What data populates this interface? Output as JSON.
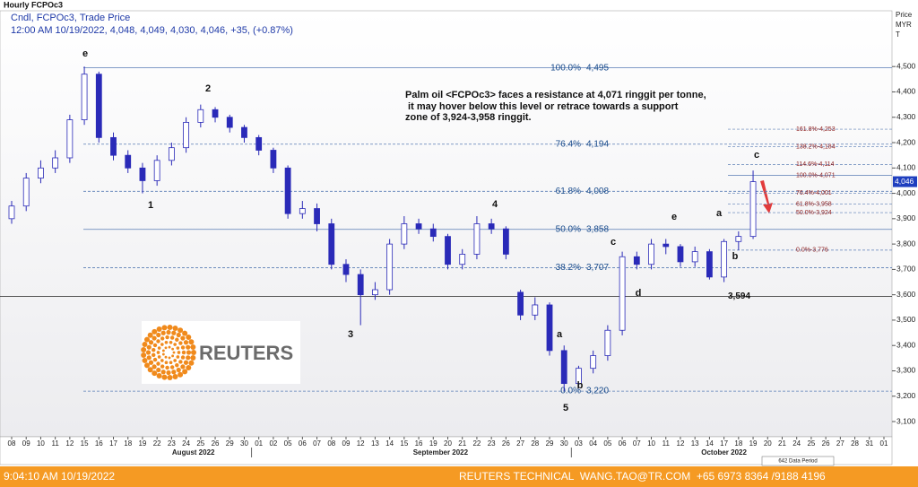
{
  "chart_data": {
    "type": "candlestick",
    "title": "Hourly FCPOc3",
    "subtitle": "Cndl, FCPOc3, Trade Price",
    "quote_line": "12:00 AM 10/19/2022, 4,048, 4,049, 4,030, 4,046, +35, (+0.87%)",
    "y_axis_label": [
      "Price",
      "MYR",
      "T"
    ],
    "categories": [
      "08",
      "09",
      "10",
      "11",
      "12",
      "15",
      "16",
      "17",
      "18",
      "19",
      "22",
      "23",
      "24",
      "25",
      "26",
      "29",
      "30",
      "01",
      "02",
      "05",
      "06",
      "07",
      "08",
      "09",
      "12",
      "13",
      "14",
      "15",
      "16",
      "19",
      "20",
      "21",
      "22",
      "23",
      "26",
      "27",
      "28",
      "29",
      "30",
      "03",
      "04",
      "05",
      "06",
      "07",
      "10",
      "11",
      "12",
      "13",
      "14",
      "17",
      "18",
      "19",
      "20",
      "21",
      "24",
      "25",
      "26",
      "27",
      "28",
      "31",
      "01"
    ],
    "months": [
      "August 2022",
      "September 2022",
      "October 2022"
    ],
    "series": [
      {
        "name": "FCPOc3",
        "color": "#2a2ab8",
        "open": [
          3900,
          3950,
          4060,
          4100,
          4140,
          4290,
          4470,
          4220,
          4150,
          4100,
          4050,
          4130,
          4180,
          4280,
          4330,
          4300,
          4260,
          4220,
          4170,
          4100,
          3920,
          3940,
          3880,
          3720,
          3680,
          3600,
          3620,
          3800,
          3880,
          3860,
          3830,
          3720,
          3760,
          3880,
          3860,
          3610,
          3520,
          3560,
          3380,
          3250,
          3310,
          3360,
          3460,
          3750,
          3720,
          3800,
          3790,
          3730,
          3770,
          3670,
          3810,
          3830,
          null,
          null,
          null,
          null,
          null,
          null,
          null,
          null,
          null
        ],
        "high": [
          3970,
          4080,
          4130,
          4170,
          4310,
          4500,
          4480,
          4240,
          4170,
          4120,
          4150,
          4200,
          4300,
          4350,
          4340,
          4310,
          4270,
          4230,
          4180,
          4110,
          3970,
          3960,
          3900,
          3740,
          3700,
          3650,
          3820,
          3910,
          3900,
          3880,
          3840,
          3780,
          3910,
          3900,
          3870,
          3620,
          3590,
          3570,
          3400,
          3320,
          3380,
          3480,
          3770,
          3770,
          3820,
          3820,
          3800,
          3790,
          3780,
          3820,
          3850,
          4090,
          null,
          null,
          null,
          null,
          null,
          null,
          null,
          null,
          null
        ],
        "low": [
          3880,
          3930,
          4040,
          4080,
          4120,
          4270,
          4200,
          4130,
          4080,
          4000,
          4030,
          4110,
          4160,
          4260,
          4280,
          4240,
          4200,
          4150,
          4080,
          3900,
          3900,
          3850,
          3700,
          3650,
          3480,
          3580,
          3600,
          3780,
          3840,
          3810,
          3700,
          3700,
          3740,
          3840,
          3740,
          3500,
          3500,
          3360,
          3220,
          3230,
          3290,
          3340,
          3440,
          3700,
          3700,
          3760,
          3710,
          3710,
          3660,
          3650,
          3776,
          3820,
          null,
          null,
          null,
          null,
          null,
          null,
          null,
          null,
          null
        ],
        "close": [
          3950,
          4060,
          4100,
          4140,
          4290,
          4470,
          4220,
          4150,
          4100,
          4050,
          4130,
          4180,
          4280,
          4330,
          4300,
          4260,
          4220,
          4170,
          4100,
          3920,
          3940,
          3880,
          3720,
          3680,
          3600,
          3620,
          3800,
          3880,
          3860,
          3830,
          3720,
          3760,
          3880,
          3860,
          3760,
          3520,
          3560,
          3380,
          3250,
          3310,
          3360,
          3460,
          3750,
          3720,
          3800,
          3790,
          3730,
          3770,
          3670,
          3810,
          3830,
          4046,
          null,
          null,
          null,
          null,
          null,
          null,
          null,
          null,
          null
        ]
      }
    ],
    "ylim": [
      3040,
      4720
    ],
    "yticks": [
      {
        "value": 3100,
        "label": "3,100"
      },
      {
        "value": 3200,
        "label": "3,200"
      },
      {
        "value": 3300,
        "label": "3,300"
      },
      {
        "value": 3400,
        "label": "3,400"
      },
      {
        "value": 3500,
        "label": "3,500"
      },
      {
        "value": 3600,
        "label": "3,600"
      },
      {
        "value": 3700,
        "label": "3,700"
      },
      {
        "value": 3800,
        "label": "3,800"
      },
      {
        "value": 3900,
        "label": "3,900"
      },
      {
        "value": 4000,
        "label": "4,000"
      },
      {
        "value": 4100,
        "label": "4,100"
      },
      {
        "value": 4200,
        "label": "4,200"
      },
      {
        "value": 4300,
        "label": "4,300"
      },
      {
        "value": 4400,
        "label": "4,400"
      },
      {
        "value": 4500,
        "label": "4,500"
      }
    ],
    "last_price": {
      "value": 4046,
      "label": "4,046"
    },
    "fib_levels": [
      {
        "pct": "100.0%",
        "value": 4495,
        "label": "4,495"
      },
      {
        "pct": "76.4%",
        "value": 4194,
        "label": "4,194"
      },
      {
        "pct": "61.8%",
        "value": 4008,
        "label": "4,008"
      },
      {
        "pct": "50.0%",
        "value": 3858,
        "label": "3,858"
      },
      {
        "pct": "38.2%",
        "value": 3707,
        "label": "3,707"
      },
      {
        "pct": "0.0%",
        "value": 3220,
        "label": "3,220"
      }
    ],
    "support_line": {
      "value": 3594,
      "label": "3,594"
    },
    "projection_levels": [
      {
        "value": 4253,
        "label": "161.8%-4,253"
      },
      {
        "value": 4184,
        "label": "138.2%-4,184"
      },
      {
        "value": 4114,
        "label": "114.6%-4,114"
      },
      {
        "value": 4071,
        "label": "100.0%-4,071"
      },
      {
        "value": 4001,
        "label": "76.4%-4,001"
      },
      {
        "value": 3958,
        "label": "61.8%-3,958"
      },
      {
        "value": 3924,
        "label": "50.0%-3,924"
      },
      {
        "value": 3776,
        "label": "0.0%-3,776"
      }
    ],
    "annotation": [
      "Palm oil <FCPOc3> faces a resistance at 4,071 ringgit per tonne,",
      " it may hover below this level or retrace towards a support",
      "zone of 3,924-3,958 ringgit."
    ],
    "wave_labels": [
      "e",
      "2",
      "1",
      "3",
      "4",
      "5",
      "a",
      "b",
      "c",
      "d",
      "e",
      "a",
      "b",
      "c"
    ],
    "logo": "REUTERS",
    "data_period": "642 Data Period",
    "footer_time": "9:04:10 AM 10/19/2022",
    "footer_contact": "REUTERS TECHNICAL  WANG.TAO@TR.COM  +65 6973 8364 /9188 4196"
  }
}
